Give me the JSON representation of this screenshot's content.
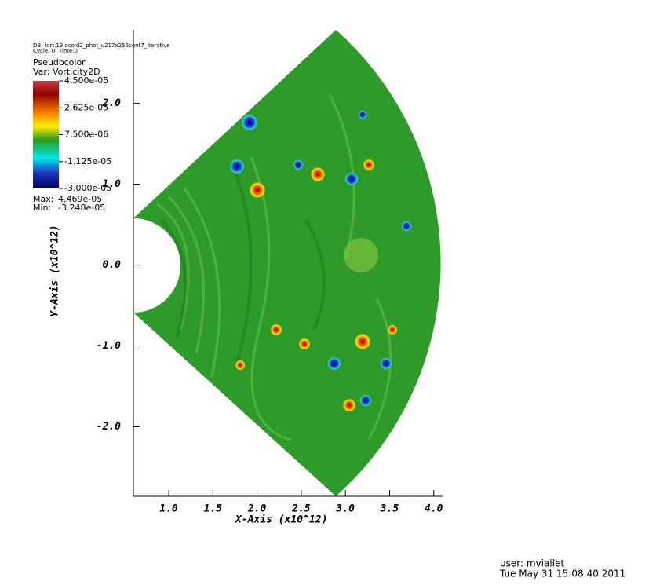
{
  "chart_data": {
    "type": "pseudocolor",
    "db_label": "DB: fort.13.ocoid2_phot_u217x256cont7_iterative",
    "cycle_label": "Cycle: 0",
    "time_label": "Time:0",
    "legend_title": "Pseudocolor",
    "variable": "Var: Vorticity2D",
    "colorbar_ticks": [
      {
        "value": 4.5e-05,
        "label": "4.500e-05"
      },
      {
        "value": 2.625e-05,
        "label": "2.625e-05"
      },
      {
        "value": 7.5e-06,
        "label": "7.500e-06"
      },
      {
        "value": -1.125e-05,
        "label": "-1.125e-05"
      },
      {
        "value": -3e-05,
        "label": "-3.000e-05"
      }
    ],
    "stats": [
      {
        "name": "Max:",
        "value": 4.469e-05,
        "label": "4.469e-05"
      },
      {
        "name": "Min:",
        "value": -3.248e-05,
        "label": "-3.248e-05"
      }
    ],
    "xlabel": "X-Axis (x10^12)",
    "ylabel": "Y-Axis (x10^12)",
    "xlim": [
      0.6,
      4.1
    ],
    "ylim": [
      -2.86,
      2.91
    ],
    "xticks": [
      {
        "value": 1,
        "label": "1.0"
      },
      {
        "value": 1.5,
        "label": "1.5"
      },
      {
        "value": 2,
        "label": "2.0"
      },
      {
        "value": 2.5,
        "label": "2.5"
      },
      {
        "value": 3,
        "label": "3.0"
      },
      {
        "value": 3.5,
        "label": "3.5"
      },
      {
        "value": 4,
        "label": "4.0"
      }
    ],
    "yticks": [
      {
        "value": 2,
        "label": "2.0"
      },
      {
        "value": 1,
        "label": "1.0"
      },
      {
        "value": 0,
        "label": "0.0"
      },
      {
        "value": -1,
        "label": "-1.0"
      },
      {
        "value": -2,
        "label": "-2.0"
      }
    ],
    "user": "user: mviallet",
    "date": "Tue May 31 15:08:40 2011"
  }
}
